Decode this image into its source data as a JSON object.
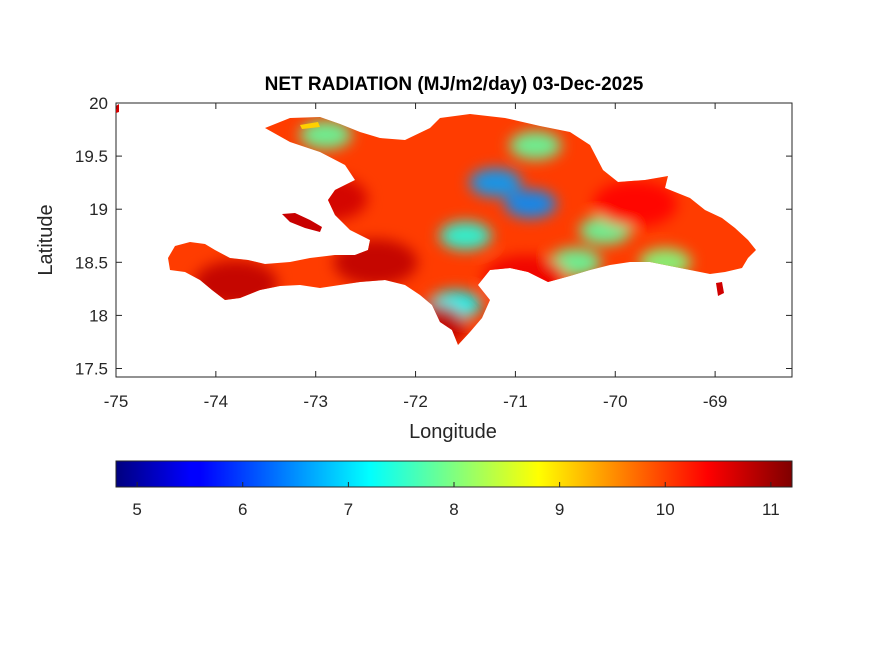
{
  "chart_data": {
    "type": "heatmap",
    "title": "NET RADIATION (MJ/m2/day) 03-Dec-2025",
    "xlabel": "Longitude",
    "ylabel": "Latitude",
    "xlim": [
      -75,
      -68.23
    ],
    "ylim": [
      17.42,
      20
    ],
    "x_ticks": [
      "-75",
      "-74",
      "-73",
      "-72",
      "-71",
      "-70",
      "-69"
    ],
    "x_tick_values": [
      -75,
      -74,
      -73,
      -72,
      -71,
      -70,
      -69
    ],
    "y_ticks": [
      "17.5",
      "18",
      "18.5",
      "19",
      "19.5",
      "20"
    ],
    "y_tick_values": [
      17.5,
      18,
      18.5,
      19,
      19.5,
      20
    ],
    "colorbar": {
      "colormap": "jet",
      "range": [
        4.8,
        11.2
      ],
      "ticks": [
        "5",
        "6",
        "7",
        "8",
        "9",
        "10",
        "11"
      ],
      "tick_values": [
        5,
        6,
        7,
        8,
        9,
        10,
        11
      ],
      "placement": "bottom"
    },
    "regions": [
      {
        "name": "low",
        "value": 6.5,
        "lon": -70.85,
        "lat": 19.05
      },
      {
        "name": "low",
        "value": 6.6,
        "lon": -71.2,
        "lat": 19.25
      },
      {
        "name": "low",
        "value": 7.2,
        "lon": -71.6,
        "lat": 18.1
      },
      {
        "name": "low",
        "value": 7.4,
        "lon": -71.5,
        "lat": 18.75
      },
      {
        "name": "low",
        "value": 7.8,
        "lon": -72.9,
        "lat": 19.7
      },
      {
        "name": "low",
        "value": 7.8,
        "lon": -70.8,
        "lat": 19.6
      },
      {
        "name": "low",
        "value": 7.8,
        "lon": -70.4,
        "lat": 18.5
      },
      {
        "name": "low",
        "value": 8.0,
        "lon": -69.5,
        "lat": 18.5
      },
      {
        "name": "low",
        "value": 7.8,
        "lon": -70.1,
        "lat": 18.8
      },
      {
        "name": "high",
        "value": 10.8,
        "lon": -72.4,
        "lat": 18.5
      },
      {
        "name": "high",
        "value": 10.8,
        "lon": -73.8,
        "lat": 18.3
      },
      {
        "name": "high",
        "value": 10.7,
        "lon": -72.9,
        "lat": 19.1
      },
      {
        "name": "high",
        "value": 10.8,
        "lon": -71.9,
        "lat": 17.9
      },
      {
        "name": "high",
        "value": 10.5,
        "lon": -70.9,
        "lat": 18.35
      },
      {
        "name": "high",
        "value": 10.4,
        "lon": -69.8,
        "lat": 19.05
      }
    ]
  }
}
